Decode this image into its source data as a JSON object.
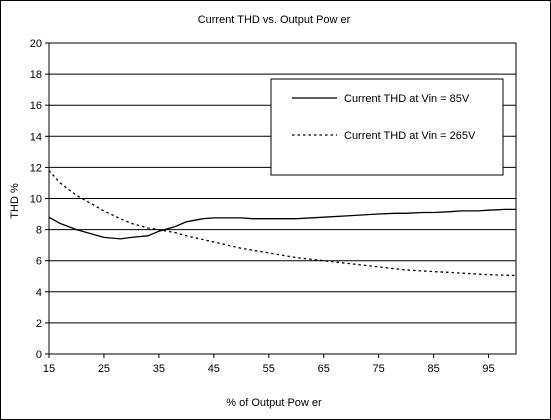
{
  "chart_data": {
    "type": "line",
    "title": "Current THD vs. Output Pow er",
    "xlabel": "% of Output Pow er",
    "ylabel": "THD %",
    "xlim": [
      15,
      100
    ],
    "ylim": [
      0,
      20
    ],
    "x_ticks": [
      "15",
      "25",
      "35",
      "45",
      "55",
      "65",
      "75",
      "85",
      "95"
    ],
    "y_ticks": [
      "0",
      "2",
      "4",
      "6",
      "8",
      "10",
      "12",
      "14",
      "16",
      "18",
      "20"
    ],
    "grid": "horizontal",
    "legend_position": "top-right",
    "series": [
      {
        "name": "Current THD at Vin = 85V",
        "line_style": "solid",
        "x": [
          15,
          17,
          20,
          22,
          25,
          28,
          30,
          33,
          35,
          38,
          40,
          43,
          45,
          48,
          50,
          52,
          55,
          60,
          65,
          70,
          75,
          78,
          80,
          83,
          85,
          88,
          90,
          93,
          95,
          98,
          100
        ],
        "y": [
          8.8,
          8.4,
          8.0,
          7.8,
          7.5,
          7.4,
          7.5,
          7.6,
          7.9,
          8.2,
          8.5,
          8.7,
          8.75,
          8.75,
          8.75,
          8.7,
          8.7,
          8.7,
          8.8,
          8.9,
          9.0,
          9.05,
          9.05,
          9.1,
          9.1,
          9.15,
          9.2,
          9.2,
          9.25,
          9.3,
          9.3
        ]
      },
      {
        "name": "Current THD at Vin = 265V",
        "line_style": "dotted",
        "x": [
          15,
          17,
          20,
          22,
          25,
          28,
          30,
          33,
          35,
          38,
          40,
          45,
          50,
          55,
          60,
          65,
          70,
          75,
          80,
          85,
          88,
          90,
          95,
          100
        ],
        "y": [
          11.8,
          11.0,
          10.2,
          9.8,
          9.2,
          8.7,
          8.4,
          8.1,
          8.0,
          7.8,
          7.6,
          7.2,
          6.8,
          6.5,
          6.2,
          6.0,
          5.8,
          5.6,
          5.4,
          5.3,
          5.25,
          5.2,
          5.1,
          5.05
        ]
      }
    ]
  }
}
